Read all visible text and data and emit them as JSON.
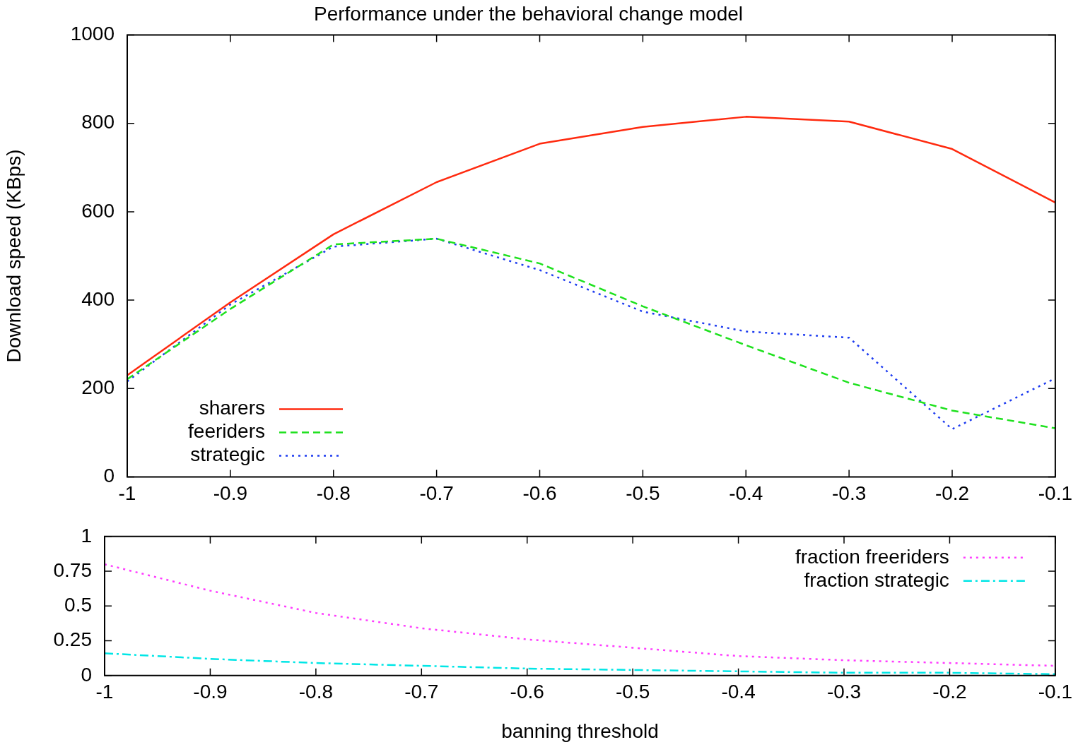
{
  "chart_data": [
    {
      "type": "line",
      "title": "Performance under the behavioral change model",
      "ylabel": "Download speed (KBps)",
      "x": [
        -1,
        -0.9,
        -0.8,
        -0.7,
        -0.6,
        -0.5,
        -0.4,
        -0.3,
        -0.2,
        -0.1
      ],
      "series": [
        {
          "name": "sharers",
          "color": "#ff2a0f",
          "line_style": "solid",
          "values": [
            230,
            395,
            549,
            667,
            754,
            792,
            815,
            804,
            742,
            621
          ]
        },
        {
          "name": "feeriders",
          "color": "#1ee11e",
          "line_style": "dashed",
          "values": [
            221,
            380,
            526,
            539,
            483,
            386,
            298,
            213,
            150,
            110
          ]
        },
        {
          "name": "strategic",
          "color": "#1e3cf0",
          "line_style": "dotted",
          "values": [
            216,
            390,
            521,
            539,
            468,
            374,
            329,
            315,
            108,
            223
          ]
        }
      ],
      "xlim": [
        -1,
        -0.1
      ],
      "xticks": [
        -1,
        -0.9,
        -0.8,
        -0.7,
        -0.6,
        -0.5,
        -0.4,
        -0.3,
        -0.2,
        -0.1
      ],
      "ylim": [
        0,
        1000
      ],
      "yticks": [
        0,
        200,
        400,
        600,
        800,
        1000
      ],
      "legend": "bottom left",
      "marker": "none"
    },
    {
      "type": "line",
      "xlabel": "banning threshold",
      "x": [
        -1,
        -0.9,
        -0.8,
        -0.7,
        -0.6,
        -0.5,
        -0.4,
        -0.3,
        -0.2,
        -0.1
      ],
      "series": [
        {
          "name": "fraction freeriders",
          "color": "#ff3cff",
          "line_style": "dotted",
          "values": [
            0.8,
            0.61,
            0.45,
            0.34,
            0.26,
            0.2,
            0.14,
            0.11,
            0.09,
            0.07
          ]
        },
        {
          "name": "fraction strategic",
          "color": "#00e6e6",
          "line_style": "dashdot",
          "values": [
            0.16,
            0.12,
            0.09,
            0.07,
            0.05,
            0.04,
            0.03,
            0.02,
            0.02,
            0.01
          ]
        }
      ],
      "xlim": [
        -1,
        -0.1
      ],
      "xticks": [
        -1,
        -0.9,
        -0.8,
        -0.7,
        -0.6,
        -0.5,
        -0.4,
        -0.3,
        -0.2,
        -0.1
      ],
      "ylim": [
        0,
        1
      ],
      "yticks": [
        0,
        0.25,
        0.5,
        0.75,
        1
      ],
      "legend": "top right",
      "marker": "none"
    }
  ]
}
